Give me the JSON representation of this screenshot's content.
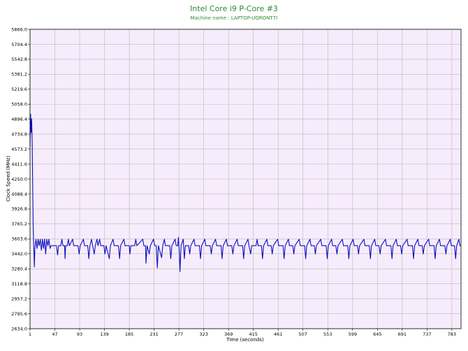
{
  "colors": {
    "plot_bg": "#f7ecfb",
    "grid": "#b9b9b9",
    "line": "#0b0fbf",
    "title": "#2e8b2e",
    "axis": "#000000"
  },
  "chart_data": {
    "type": "line",
    "title": "Intel Core i9 P-Core #3",
    "subtitle": "Machine name : LAPTOP-UQRONT7I",
    "xlabel": "Time (seconds)",
    "ylabel": "Clock Speed (MHz)",
    "xlim": [
      1,
      800
    ],
    "ylim": [
      2634.0,
      5866.0
    ],
    "x_ticks": [
      1,
      47,
      93,
      139,
      185,
      231,
      277,
      323,
      369,
      415,
      461,
      507,
      553,
      599,
      645,
      691,
      737,
      783
    ],
    "y_ticks": [
      "2634.0",
      "2795.6",
      "2957.2",
      "3118.8",
      "3280.4",
      "3442.0",
      "3603.6",
      "3765.2",
      "3926.8",
      "4088.4",
      "4250.0",
      "4411.6",
      "4573.2",
      "4734.8",
      "4896.4",
      "5058.0",
      "5219.6",
      "5381.2",
      "5542.8",
      "5704.4",
      "5866.0"
    ],
    "grid": true,
    "series": [
      {
        "values": [
          [
            1,
            4600
          ],
          [
            2,
            4950
          ],
          [
            3,
            4750
          ],
          [
            4,
            4900
          ],
          [
            5,
            4650
          ],
          [
            6,
            4100
          ],
          [
            7,
            3700
          ],
          [
            8,
            3500
          ],
          [
            9,
            3300
          ],
          [
            10,
            3500
          ],
          [
            12,
            3600
          ],
          [
            14,
            3500
          ],
          [
            16,
            3600
          ],
          [
            18,
            3530
          ],
          [
            20,
            3600
          ],
          [
            22,
            3480
          ],
          [
            24,
            3600
          ],
          [
            26,
            3500
          ],
          [
            28,
            3600
          ],
          [
            30,
            3440
          ],
          [
            32,
            3600
          ],
          [
            34,
            3530
          ],
          [
            36,
            3600
          ],
          [
            38,
            3500
          ],
          [
            40,
            3530
          ],
          [
            42,
            3530
          ],
          [
            50,
            3530
          ],
          [
            52,
            3430
          ],
          [
            54,
            3530
          ],
          [
            58,
            3530
          ],
          [
            60,
            3600
          ],
          [
            62,
            3530
          ],
          [
            65,
            3530
          ],
          [
            66,
            3390
          ],
          [
            67,
            3530
          ],
          [
            70,
            3530
          ],
          [
            72,
            3600
          ],
          [
            74,
            3530
          ],
          [
            80,
            3600
          ],
          [
            82,
            3530
          ],
          [
            90,
            3530
          ],
          [
            92,
            3440
          ],
          [
            94,
            3530
          ],
          [
            100,
            3600
          ],
          [
            102,
            3530
          ],
          [
            108,
            3530
          ],
          [
            110,
            3390
          ],
          [
            112,
            3530
          ],
          [
            115,
            3600
          ],
          [
            117,
            3530
          ],
          [
            120,
            3440
          ],
          [
            122,
            3530
          ],
          [
            125,
            3600
          ],
          [
            127,
            3530
          ],
          [
            130,
            3600
          ],
          [
            132,
            3530
          ],
          [
            138,
            3530
          ],
          [
            140,
            3440
          ],
          [
            142,
            3530
          ],
          [
            148,
            3390
          ],
          [
            150,
            3530
          ],
          [
            155,
            3600
          ],
          [
            157,
            3530
          ],
          [
            165,
            3530
          ],
          [
            167,
            3390
          ],
          [
            169,
            3530
          ],
          [
            175,
            3600
          ],
          [
            177,
            3530
          ],
          [
            185,
            3530
          ],
          [
            186,
            3440
          ],
          [
            188,
            3530
          ],
          [
            195,
            3530
          ],
          [
            197,
            3600
          ],
          [
            199,
            3530
          ],
          [
            210,
            3600
          ],
          [
            212,
            3530
          ],
          [
            215,
            3530
          ],
          [
            216,
            3340
          ],
          [
            218,
            3530
          ],
          [
            222,
            3440
          ],
          [
            224,
            3530
          ],
          [
            230,
            3600
          ],
          [
            232,
            3530
          ],
          [
            235,
            3530
          ],
          [
            237,
            3290
          ],
          [
            239,
            3530
          ],
          [
            245,
            3400
          ],
          [
            247,
            3530
          ],
          [
            250,
            3600
          ],
          [
            252,
            3530
          ],
          [
            260,
            3530
          ],
          [
            262,
            3390
          ],
          [
            264,
            3530
          ],
          [
            270,
            3600
          ],
          [
            272,
            3530
          ],
          [
            275,
            3530
          ],
          [
            276,
            3620
          ],
          [
            278,
            3440
          ],
          [
            279,
            3250
          ],
          [
            281,
            3530
          ],
          [
            285,
            3600
          ],
          [
            287,
            3390
          ],
          [
            289,
            3530
          ],
          [
            295,
            3530
          ],
          [
            297,
            3440
          ],
          [
            299,
            3530
          ],
          [
            305,
            3600
          ],
          [
            307,
            3530
          ],
          [
            315,
            3530
          ],
          [
            317,
            3390
          ],
          [
            319,
            3530
          ],
          [
            325,
            3600
          ],
          [
            327,
            3530
          ],
          [
            335,
            3530
          ],
          [
            337,
            3440
          ],
          [
            339,
            3530
          ],
          [
            345,
            3600
          ],
          [
            347,
            3530
          ],
          [
            355,
            3530
          ],
          [
            357,
            3390
          ],
          [
            359,
            3530
          ],
          [
            365,
            3600
          ],
          [
            367,
            3530
          ],
          [
            375,
            3530
          ],
          [
            377,
            3440
          ],
          [
            379,
            3530
          ],
          [
            385,
            3600
          ],
          [
            387,
            3530
          ],
          [
            395,
            3530
          ],
          [
            397,
            3390
          ],
          [
            399,
            3530
          ],
          [
            405,
            3600
          ],
          [
            407,
            3530
          ],
          [
            410,
            3440
          ],
          [
            412,
            3530
          ],
          [
            420,
            3530
          ],
          [
            422,
            3600
          ],
          [
            424,
            3530
          ],
          [
            430,
            3530
          ],
          [
            432,
            3390
          ],
          [
            434,
            3530
          ],
          [
            440,
            3600
          ],
          [
            442,
            3530
          ],
          [
            448,
            3530
          ],
          [
            450,
            3440
          ],
          [
            452,
            3530
          ],
          [
            460,
            3600
          ],
          [
            462,
            3530
          ],
          [
            470,
            3530
          ],
          [
            472,
            3390
          ],
          [
            474,
            3530
          ],
          [
            480,
            3600
          ],
          [
            482,
            3530
          ],
          [
            488,
            3530
          ],
          [
            490,
            3440
          ],
          [
            492,
            3530
          ],
          [
            500,
            3600
          ],
          [
            502,
            3530
          ],
          [
            510,
            3530
          ],
          [
            512,
            3390
          ],
          [
            514,
            3530
          ],
          [
            520,
            3600
          ],
          [
            522,
            3530
          ],
          [
            528,
            3530
          ],
          [
            530,
            3440
          ],
          [
            532,
            3530
          ],
          [
            540,
            3600
          ],
          [
            542,
            3530
          ],
          [
            550,
            3530
          ],
          [
            552,
            3390
          ],
          [
            554,
            3530
          ],
          [
            560,
            3600
          ],
          [
            562,
            3530
          ],
          [
            568,
            3530
          ],
          [
            570,
            3440
          ],
          [
            572,
            3530
          ],
          [
            580,
            3600
          ],
          [
            582,
            3530
          ],
          [
            590,
            3530
          ],
          [
            592,
            3390
          ],
          [
            594,
            3530
          ],
          [
            600,
            3600
          ],
          [
            602,
            3530
          ],
          [
            608,
            3530
          ],
          [
            610,
            3440
          ],
          [
            612,
            3530
          ],
          [
            620,
            3600
          ],
          [
            622,
            3530
          ],
          [
            630,
            3530
          ],
          [
            632,
            3390
          ],
          [
            634,
            3530
          ],
          [
            640,
            3600
          ],
          [
            642,
            3530
          ],
          [
            648,
            3530
          ],
          [
            650,
            3440
          ],
          [
            652,
            3530
          ],
          [
            660,
            3600
          ],
          [
            662,
            3530
          ],
          [
            670,
            3530
          ],
          [
            672,
            3390
          ],
          [
            674,
            3530
          ],
          [
            680,
            3600
          ],
          [
            682,
            3530
          ],
          [
            688,
            3530
          ],
          [
            690,
            3440
          ],
          [
            692,
            3530
          ],
          [
            700,
            3600
          ],
          [
            702,
            3530
          ],
          [
            710,
            3530
          ],
          [
            712,
            3390
          ],
          [
            714,
            3530
          ],
          [
            720,
            3600
          ],
          [
            722,
            3530
          ],
          [
            728,
            3530
          ],
          [
            730,
            3440
          ],
          [
            732,
            3530
          ],
          [
            740,
            3600
          ],
          [
            742,
            3530
          ],
          [
            750,
            3530
          ],
          [
            752,
            3390
          ],
          [
            754,
            3530
          ],
          [
            760,
            3600
          ],
          [
            762,
            3530
          ],
          [
            770,
            3530
          ],
          [
            772,
            3440
          ],
          [
            774,
            3530
          ],
          [
            780,
            3600
          ],
          [
            782,
            3530
          ],
          [
            788,
            3530
          ],
          [
            790,
            3390
          ],
          [
            792,
            3530
          ],
          [
            796,
            3600
          ],
          [
            798,
            3530
          ],
          [
            800,
            3530
          ]
        ]
      }
    ]
  }
}
